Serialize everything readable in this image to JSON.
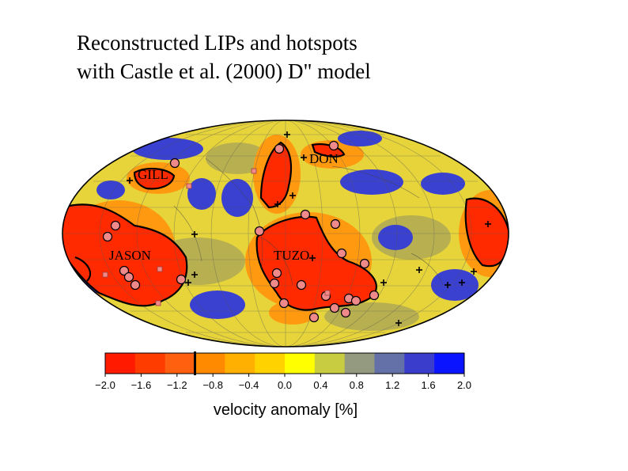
{
  "slide": {
    "title_line1": "Reconstructed LIPs and hotspots",
    "title_line2": "with Castle et al. (2000) D\" model"
  },
  "map": {
    "projection": "mollweide",
    "regions": [
      "GILL",
      "DON",
      "JASON",
      "TUZO"
    ],
    "contour_color": "#000000",
    "lip_marker_color": "#f08a8a",
    "hotspot_marker_color": "#000000"
  },
  "colorbar": {
    "ticks": [
      "−2.0",
      "−1.6",
      "−1.2",
      "−0.8",
      "−0.4",
      "0.0",
      "0.4",
      "0.8",
      "1.2",
      "1.6",
      "2.0"
    ],
    "label": "velocity anomaly [%]",
    "colors": [
      "#ff1a00",
      "#ff3c00",
      "#ff6010",
      "#ff8a00",
      "#ffb000",
      "#ffd200",
      "#ffff00",
      "#c8cc40",
      "#949a80",
      "#6470a8",
      "#3a3ccc",
      "#0a14ff"
    ],
    "threshold_marker": "−1.0"
  }
}
